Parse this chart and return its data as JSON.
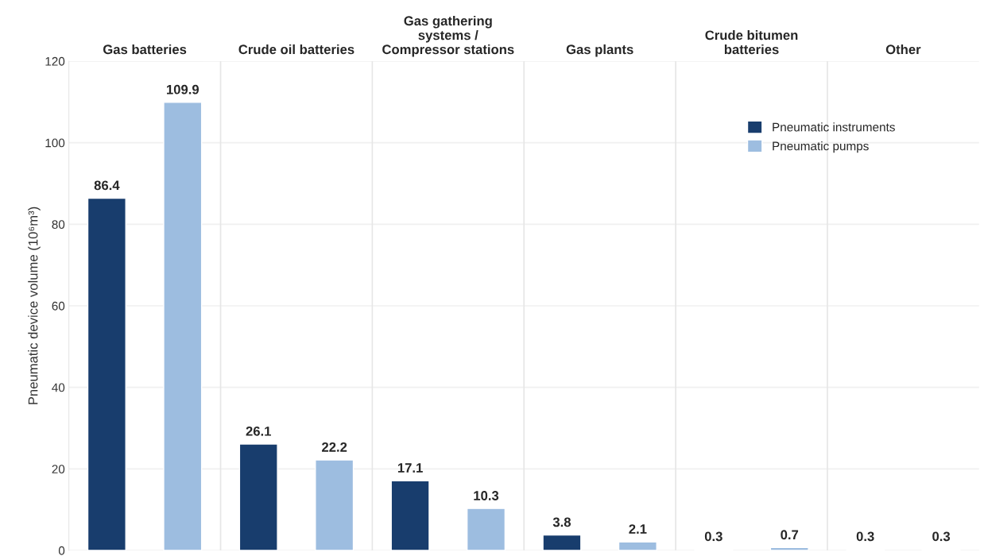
{
  "chart_data": {
    "type": "bar",
    "categories": [
      "Gas batteries",
      "Crude oil batteries",
      "Gas gathering\nsystems /\nCompressor stations",
      "Gas plants",
      "Crude bitumen\nbatteries",
      "Other"
    ],
    "series": [
      {
        "name": "Pneumatic instruments",
        "color": "#183d6d",
        "values": [
          86.4,
          26.1,
          17.1,
          3.8,
          0.3,
          0.3
        ]
      },
      {
        "name": "Pneumatic pumps",
        "color": "#9dbde0",
        "values": [
          109.9,
          22.2,
          10.3,
          2.1,
          0.7,
          0.3
        ]
      }
    ],
    "ylabel": "Pneumatic device volume (10⁶m³)",
    "ylim": [
      0,
      120
    ],
    "yticks": [
      0,
      20,
      40,
      60,
      80,
      100,
      120
    ],
    "grid": true,
    "legend": "top right",
    "data_labels": true
  }
}
